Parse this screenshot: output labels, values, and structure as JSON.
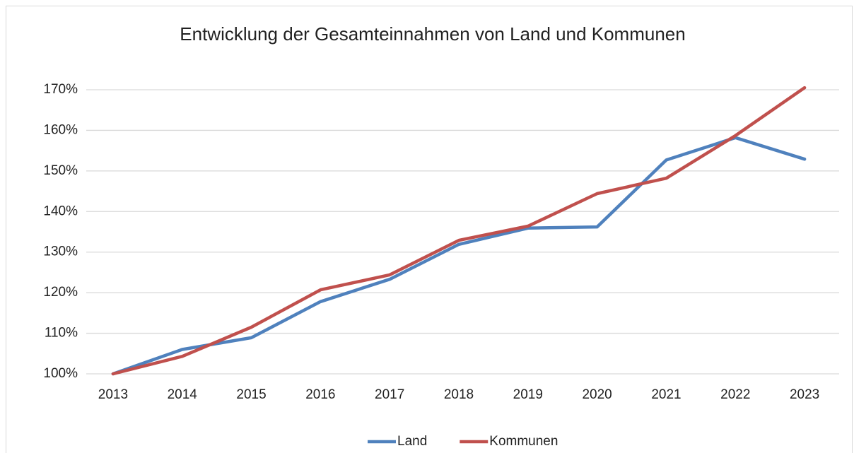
{
  "chart_data": {
    "type": "line",
    "title": "Entwicklung der Gesamteinnahmen von Land und Kommunen",
    "categories": [
      "2013",
      "2014",
      "2015",
      "2016",
      "2017",
      "2018",
      "2019",
      "2020",
      "2021",
      "2022",
      "2023"
    ],
    "series": [
      {
        "name": "Land",
        "color": "#4f81bd",
        "values": [
          100,
          106,
          108.9,
          117.8,
          123.3,
          131.9,
          135.9,
          136.2,
          152.7,
          158.2,
          152.9
        ]
      },
      {
        "name": "Kommunen",
        "color": "#c0504d",
        "values": [
          100,
          104.3,
          111.5,
          120.7,
          124.4,
          132.9,
          136.4,
          144.4,
          148.2,
          158.7,
          170.5
        ]
      }
    ],
    "ylim": [
      100,
      170
    ],
    "yticks": [
      {
        "value": 100,
        "label": "100%"
      },
      {
        "value": 110,
        "label": "110%"
      },
      {
        "value": 120,
        "label": "120%"
      },
      {
        "value": 130,
        "label": "130%"
      },
      {
        "value": 140,
        "label": "140%"
      },
      {
        "value": 150,
        "label": "150%"
      },
      {
        "value": 160,
        "label": "160%"
      },
      {
        "value": 170,
        "label": "170%"
      }
    ],
    "grid": true,
    "legend": "bottom"
  }
}
